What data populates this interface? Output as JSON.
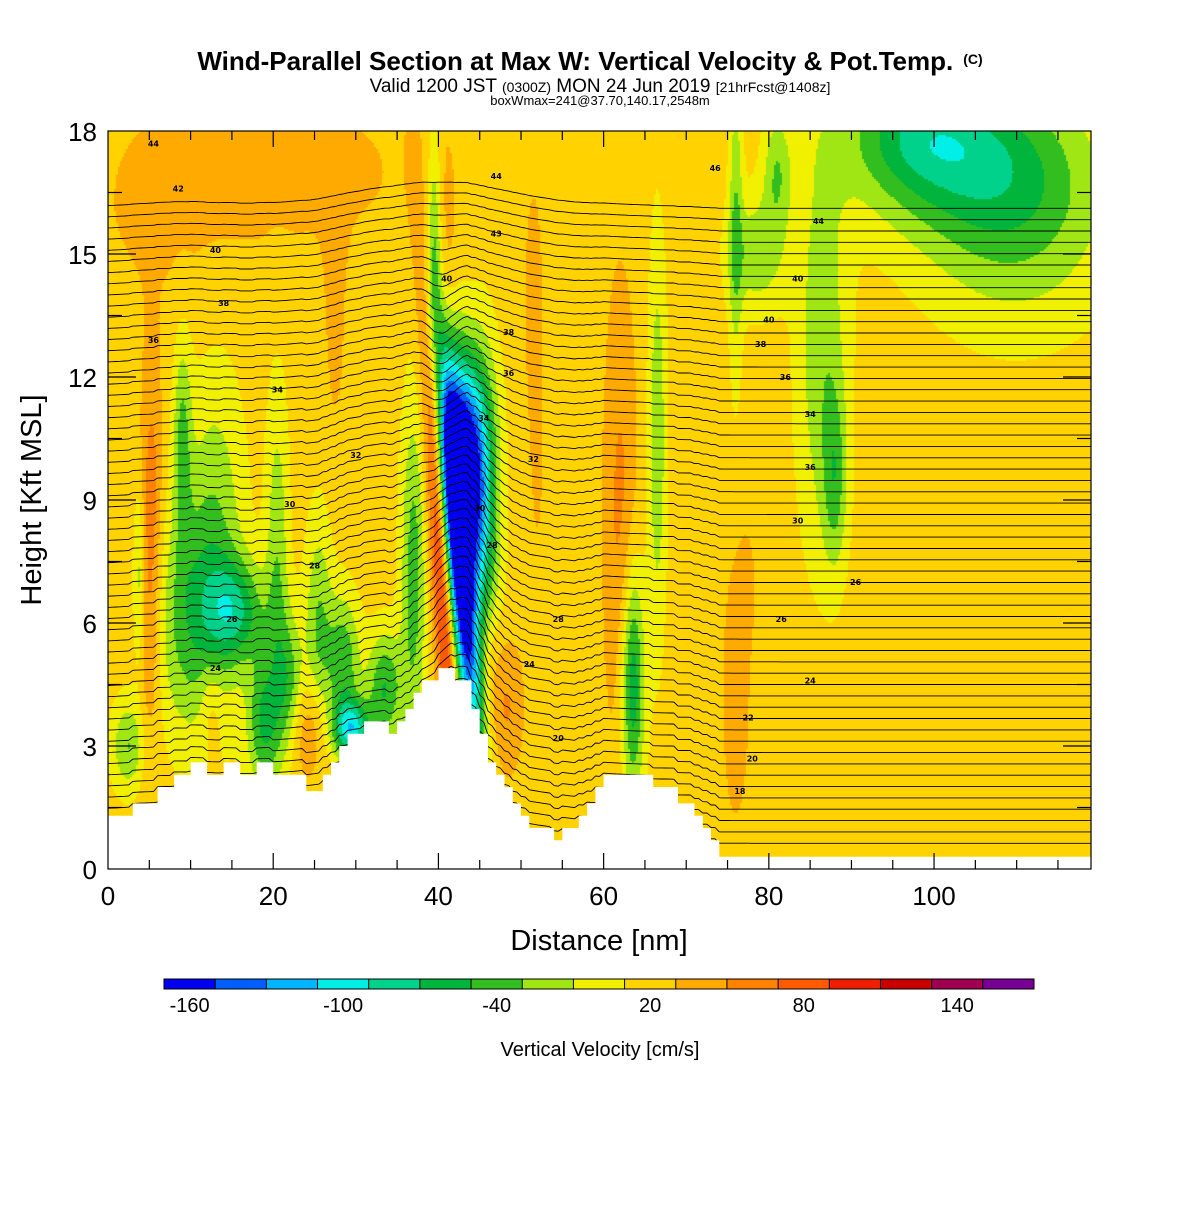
{
  "chart_data": {
    "type": "heatmap",
    "title": "Wind-Parallel Section at Max W: Vertical Velocity & Pot.Temp.",
    "title_mark": "(C)",
    "subtitle": {
      "part1": "Valid 1200 JST ",
      "part2": "(0300Z)",
      "part3": " MON 24 Jun 2019 ",
      "part4": "[21hrFcst@1408z]"
    },
    "subtitle2": "boxWmax=241@37.70,140.17,2548m",
    "xlabel": "Distance [nm]",
    "ylabel": "Height [Kft MSL]",
    "xlim": [
      0,
      119
    ],
    "ylim": [
      0,
      18
    ],
    "x_ticks": [
      "0",
      "20",
      "40",
      "60",
      "80",
      "100"
    ],
    "y_ticks": [
      "0",
      "3",
      "6",
      "9",
      "12",
      "15",
      "18"
    ],
    "background_value": 20,
    "colorbar": {
      "label": "Vertical Velocity [cm/s]",
      "tick_labels": [
        "-160",
        "-100",
        "-40",
        "20",
        "80",
        "140"
      ],
      "tick_values": [
        -160,
        -100,
        -40,
        20,
        80,
        140
      ],
      "min": -170,
      "max": 170,
      "colors": [
        "#0000f0",
        "#0060ff",
        "#00b4ff",
        "#00f0e8",
        "#00d28c",
        "#00b43c",
        "#32be1e",
        "#a0e614",
        "#f0f000",
        "#ffd200",
        "#ffaa00",
        "#ff8200",
        "#ff5a00",
        "#f01e00",
        "#c80000",
        "#a00050",
        "#780096"
      ]
    },
    "terrain": [
      [
        0,
        1.3
      ],
      [
        3,
        1.3
      ],
      [
        3,
        1.6
      ],
      [
        6,
        1.6
      ],
      [
        6,
        2.0
      ],
      [
        8,
        2.0
      ],
      [
        8,
        2.3
      ],
      [
        10,
        2.3
      ],
      [
        10,
        2.6
      ],
      [
        12,
        2.6
      ],
      [
        12,
        2.3
      ],
      [
        14,
        2.3
      ],
      [
        14,
        2.6
      ],
      [
        16,
        2.6
      ],
      [
        16,
        2.3
      ],
      [
        18,
        2.3
      ],
      [
        18,
        2.6
      ],
      [
        20,
        2.6
      ],
      [
        20,
        2.3
      ],
      [
        24,
        2.3
      ],
      [
        24,
        1.9
      ],
      [
        26,
        1.9
      ],
      [
        26,
        2.3
      ],
      [
        27,
        2.3
      ],
      [
        27,
        2.6
      ],
      [
        28,
        2.6
      ],
      [
        28,
        3.0
      ],
      [
        29,
        3.0
      ],
      [
        29,
        3.3
      ],
      [
        31,
        3.3
      ],
      [
        31,
        3.6
      ],
      [
        34,
        3.6
      ],
      [
        34,
        3.3
      ],
      [
        35,
        3.3
      ],
      [
        35,
        3.6
      ],
      [
        36,
        3.6
      ],
      [
        36,
        3.9
      ],
      [
        37,
        3.9
      ],
      [
        37,
        4.3
      ],
      [
        38,
        4.3
      ],
      [
        38,
        4.6
      ],
      [
        40,
        4.6
      ],
      [
        40,
        4.9
      ],
      [
        42,
        4.9
      ],
      [
        42,
        4.6
      ],
      [
        44,
        4.6
      ],
      [
        44,
        3.9
      ],
      [
        45,
        3.9
      ],
      [
        45,
        3.3
      ],
      [
        46,
        3.3
      ],
      [
        46,
        2.6
      ],
      [
        47,
        2.6
      ],
      [
        47,
        2.3
      ],
      [
        48,
        2.3
      ],
      [
        48,
        2.0
      ],
      [
        49,
        2.0
      ],
      [
        49,
        1.6
      ],
      [
        50,
        1.6
      ],
      [
        50,
        1.3
      ],
      [
        51,
        1.3
      ],
      [
        51,
        1.0
      ],
      [
        54,
        1.0
      ],
      [
        54,
        0.7
      ],
      [
        55,
        0.7
      ],
      [
        55,
        1.0
      ],
      [
        57,
        1.0
      ],
      [
        57,
        1.3
      ],
      [
        58,
        1.3
      ],
      [
        58,
        1.6
      ],
      [
        59,
        1.6
      ],
      [
        59,
        2.0
      ],
      [
        60,
        2.0
      ],
      [
        60,
        2.3
      ],
      [
        66,
        2.3
      ],
      [
        66,
        2.0
      ],
      [
        69,
        2.0
      ],
      [
        69,
        1.6
      ],
      [
        71,
        1.6
      ],
      [
        71,
        1.3
      ],
      [
        72,
        1.3
      ],
      [
        72,
        1.0
      ],
      [
        73,
        1.0
      ],
      [
        73,
        0.7
      ],
      [
        74,
        0.7
      ],
      [
        74,
        0.3
      ],
      [
        119,
        0.3
      ]
    ],
    "velocity_features": [
      {
        "x": 40.2,
        "y": 8.0,
        "sx": 0.9,
        "sy": 4.6,
        "v": 125,
        "rot": -7
      },
      {
        "x": 39.8,
        "y": 11.5,
        "sx": 0.7,
        "sy": 1.2,
        "v": 40
      },
      {
        "x": 42.3,
        "y": 7.8,
        "sx": 1.2,
        "sy": 3.4,
        "v": -200,
        "rot": -10
      },
      {
        "x": 43.3,
        "y": 9.8,
        "sx": 1.6,
        "sy": 2.2,
        "v": -105,
        "rot": -12
      },
      {
        "x": 44.2,
        "y": 10.6,
        "sx": 1.8,
        "sy": 1.6,
        "v": -55
      },
      {
        "x": 45.5,
        "y": 8.2,
        "sx": 1.4,
        "sy": 3.0,
        "v": -25
      },
      {
        "x": 37.0,
        "y": 7.2,
        "sx": 1.1,
        "sy": 3.0,
        "v": -40
      },
      {
        "x": 41.0,
        "y": 14.5,
        "sx": 0.9,
        "sy": 2.2,
        "v": 40
      },
      {
        "x": 39.5,
        "y": 15.3,
        "sx": 0.6,
        "sy": 2.0,
        "v": -25
      },
      {
        "x": 5.0,
        "y": 6.8,
        "sx": 1.0,
        "sy": 3.0,
        "v": 65
      },
      {
        "x": 5.5,
        "y": 10.0,
        "sx": 0.8,
        "sy": 2.0,
        "v": 35
      },
      {
        "x": 2.5,
        "y": 3.0,
        "sx": 1.5,
        "sy": 0.8,
        "v": -30
      },
      {
        "x": 3.8,
        "y": 7.2,
        "sx": 0.5,
        "sy": 1.6,
        "v": -25
      },
      {
        "x": 9.5,
        "y": 6.0,
        "sx": 3.0,
        "sy": 2.0,
        "v": -30
      },
      {
        "x": 9.0,
        "y": 10.5,
        "sx": 0.8,
        "sy": 1.8,
        "v": -30
      },
      {
        "x": 13.0,
        "y": 8.0,
        "sx": 2.5,
        "sy": 3.0,
        "v": -25
      },
      {
        "x": 15.5,
        "y": 6.3,
        "sx": 2.5,
        "sy": 0.9,
        "v": -55
      },
      {
        "x": 12.5,
        "y": 4.0,
        "sx": 1.0,
        "sy": 0.9,
        "v": 45
      },
      {
        "x": 20.5,
        "y": 7.5,
        "sx": 1.0,
        "sy": 3.0,
        "v": -25
      },
      {
        "x": 18.8,
        "y": 3.6,
        "sx": 1.4,
        "sy": 1.2,
        "v": -50
      },
      {
        "x": 22.0,
        "y": 4.5,
        "sx": 1.2,
        "sy": 1.2,
        "v": -35
      },
      {
        "x": 24.5,
        "y": 3.4,
        "sx": 1.7,
        "sy": 0.9,
        "v": 60
      },
      {
        "x": 25.5,
        "y": 5.8,
        "sx": 1.2,
        "sy": 2.0,
        "v": -30
      },
      {
        "x": 28.5,
        "y": 5.0,
        "sx": 1.4,
        "sy": 1.2,
        "v": -45
      },
      {
        "x": 29.5,
        "y": 3.4,
        "sx": 1.6,
        "sy": 0.5,
        "v": -90
      },
      {
        "x": 33.5,
        "y": 4.4,
        "sx": 1.5,
        "sy": 1.0,
        "v": -50
      },
      {
        "x": 27.5,
        "y": 13.5,
        "sx": 1.0,
        "sy": 2.5,
        "v": 35
      },
      {
        "x": 48.0,
        "y": 4.0,
        "sx": 1.5,
        "sy": 1.2,
        "v": 55
      },
      {
        "x": 46.0,
        "y": 5.5,
        "sx": 1.0,
        "sy": 1.2,
        "v": 45
      },
      {
        "x": 51.5,
        "y": 14.0,
        "sx": 1.0,
        "sy": 2.5,
        "v": 35
      },
      {
        "x": 52.0,
        "y": 9.5,
        "sx": 0.8,
        "sy": 2.5,
        "v": 30
      },
      {
        "x": 62.0,
        "y": 8.5,
        "sx": 1.4,
        "sy": 4.0,
        "v": 55
      },
      {
        "x": 63.5,
        "y": 4.5,
        "sx": 1.0,
        "sy": 2.0,
        "v": -70
      },
      {
        "x": 66.5,
        "y": 10.5,
        "sx": 0.8,
        "sy": 3.5,
        "v": -25
      },
      {
        "x": 76.0,
        "y": 4.3,
        "sx": 1.3,
        "sy": 2.5,
        "v": 40
      },
      {
        "x": 77.5,
        "y": 7.0,
        "sx": 1.0,
        "sy": 1.2,
        "v": 30
      },
      {
        "x": 86.5,
        "y": 12.5,
        "sx": 2.2,
        "sy": 3.5,
        "v": -25
      },
      {
        "x": 88.0,
        "y": 9.5,
        "sx": 1.0,
        "sy": 1.5,
        "v": -25
      },
      {
        "x": 78.5,
        "y": 15.0,
        "sx": 2.5,
        "sy": 1.0,
        "v": -25
      },
      {
        "x": 81.0,
        "y": 17.0,
        "sx": 1.2,
        "sy": 1.0,
        "v": -25
      },
      {
        "x": 76.0,
        "y": 16.0,
        "sx": 0.6,
        "sy": 3.0,
        "v": -22
      },
      {
        "x": 103.0,
        "y": 17.3,
        "sx": 9.0,
        "sy": 1.4,
        "v": -35
      },
      {
        "x": 110.0,
        "y": 16.0,
        "sx": 8.0,
        "sy": 2.0,
        "v": -30
      },
      {
        "x": 98.0,
        "y": 18.0,
        "sx": 6.0,
        "sy": 1.0,
        "v": -30
      },
      {
        "x": 6.0,
        "y": 16.0,
        "sx": 7.0,
        "sy": 2.2,
        "v": 30
      },
      {
        "x": 17.0,
        "y": 17.0,
        "sx": 10.0,
        "sy": 1.8,
        "v": 30
      },
      {
        "x": 30.0,
        "y": 17.0,
        "sx": 8.0,
        "sy": 1.6,
        "v": 28
      }
    ],
    "theta_levels": [
      0,
      1,
      2,
      3,
      4,
      5,
      6,
      7,
      8,
      9,
      10,
      11,
      12,
      13,
      14,
      15,
      16,
      17,
      18,
      19,
      20,
      21,
      22,
      23,
      24,
      25,
      26,
      27,
      28,
      29,
      30,
      31,
      32,
      33,
      34,
      35,
      36,
      37,
      38,
      39,
      40,
      41,
      42,
      43,
      44,
      45,
      46,
      47,
      48,
      49,
      50,
      51,
      52,
      53,
      54,
      55,
      56
    ],
    "contour_labels": [
      {
        "x": 5.5,
        "y": 17.7,
        "text": "44"
      },
      {
        "x": 8.5,
        "y": 16.6,
        "text": "42"
      },
      {
        "x": 13.0,
        "y": 15.1,
        "text": "40"
      },
      {
        "x": 14.0,
        "y": 13.8,
        "text": "38"
      },
      {
        "x": 5.5,
        "y": 12.9,
        "text": "36"
      },
      {
        "x": 20.5,
        "y": 11.7,
        "text": "34"
      },
      {
        "x": 30.0,
        "y": 10.1,
        "text": "32"
      },
      {
        "x": 22.0,
        "y": 8.9,
        "text": "30"
      },
      {
        "x": 25.0,
        "y": 7.4,
        "text": "28"
      },
      {
        "x": 15.0,
        "y": 6.1,
        "text": "26"
      },
      {
        "x": 13.0,
        "y": 4.9,
        "text": "24"
      },
      {
        "x": 47.0,
        "y": 16.9,
        "text": "44"
      },
      {
        "x": 47.0,
        "y": 15.5,
        "text": "43"
      },
      {
        "x": 41.0,
        "y": 14.4,
        "text": "40"
      },
      {
        "x": 48.5,
        "y": 13.1,
        "text": "38"
      },
      {
        "x": 48.5,
        "y": 12.1,
        "text": "36"
      },
      {
        "x": 45.5,
        "y": 11.0,
        "text": "34"
      },
      {
        "x": 51.5,
        "y": 10.0,
        "text": "32"
      },
      {
        "x": 45.0,
        "y": 8.8,
        "text": "30"
      },
      {
        "x": 46.5,
        "y": 7.9,
        "text": "28"
      },
      {
        "x": 54.5,
        "y": 6.1,
        "text": "28"
      },
      {
        "x": 51.0,
        "y": 5.0,
        "text": "24"
      },
      {
        "x": 54.5,
        "y": 3.2,
        "text": "20"
      },
      {
        "x": 73.5,
        "y": 17.1,
        "text": "46"
      },
      {
        "x": 86.0,
        "y": 15.8,
        "text": "44"
      },
      {
        "x": 83.5,
        "y": 14.4,
        "text": "40"
      },
      {
        "x": 80.0,
        "y": 13.4,
        "text": "40"
      },
      {
        "x": 79.0,
        "y": 12.8,
        "text": "38"
      },
      {
        "x": 82.0,
        "y": 12.0,
        "text": "36"
      },
      {
        "x": 85.0,
        "y": 11.1,
        "text": "34"
      },
      {
        "x": 85.0,
        "y": 9.8,
        "text": "36"
      },
      {
        "x": 83.5,
        "y": 8.5,
        "text": "30"
      },
      {
        "x": 90.5,
        "y": 7.0,
        "text": "26"
      },
      {
        "x": 81.5,
        "y": 6.1,
        "text": "26"
      },
      {
        "x": 85.0,
        "y": 4.6,
        "text": "24"
      },
      {
        "x": 77.5,
        "y": 3.7,
        "text": "22"
      },
      {
        "x": 78.0,
        "y": 2.7,
        "text": "20"
      },
      {
        "x": 76.5,
        "y": 1.9,
        "text": "18"
      }
    ]
  }
}
